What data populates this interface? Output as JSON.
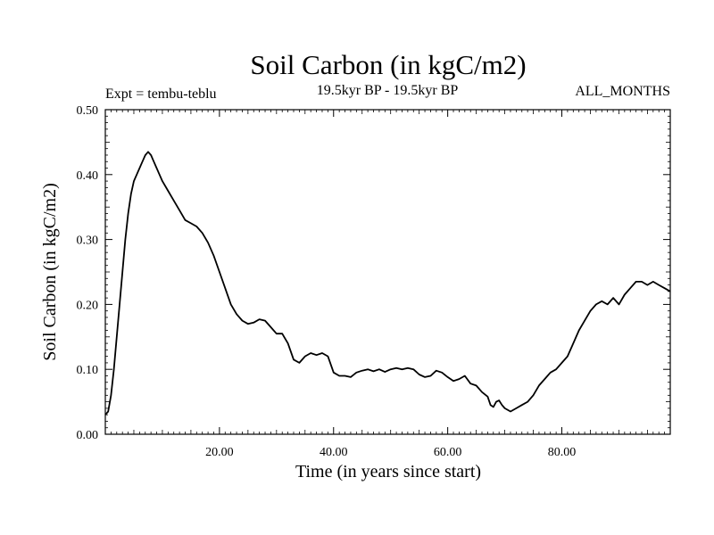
{
  "chart_data": {
    "type": "line",
    "title": "Soil Carbon (in kgC/m2)",
    "subtitle": "19.5kyr BP - 19.5kyr BP",
    "left_note": "Expt = tembu-teblu",
    "right_note": "ALL_MONTHS",
    "xlabel": "Time (in years since start)",
    "ylabel": "Soil Carbon (in kgC/m2)",
    "xlim": [
      0,
      99
    ],
    "ylim": [
      0,
      0.5
    ],
    "xticks": [
      20,
      40,
      60,
      80
    ],
    "xtick_labels": [
      "20.00",
      "40.00",
      "60.00",
      "80.00"
    ],
    "yticks": [
      0,
      0.1,
      0.2,
      0.3,
      0.4,
      0.5
    ],
    "ytick_labels": [
      "0.00",
      "0.10",
      "0.20",
      "0.30",
      "0.40",
      "0.50"
    ],
    "grid": false,
    "series": [
      {
        "line_color": "#000000",
        "x": [
          0,
          0.5,
          1,
          1.5,
          2,
          2.5,
          3,
          3.5,
          4,
          4.5,
          5,
          5.5,
          6,
          6.5,
          7,
          7.5,
          8,
          8.5,
          9,
          9.5,
          10,
          11,
          12,
          13,
          14,
          15,
          16,
          17,
          18,
          19,
          20,
          21,
          22,
          23,
          24,
          25,
          26,
          27,
          28,
          29,
          30,
          31,
          32,
          33,
          34,
          35,
          36,
          37,
          38,
          39,
          40,
          41,
          42,
          43,
          44,
          45,
          46,
          47,
          48,
          49,
          50,
          51,
          52,
          53,
          54,
          55,
          56,
          57,
          58,
          59,
          60,
          61,
          62,
          63,
          64,
          65,
          66,
          67,
          67.5,
          68,
          68.5,
          69,
          69.5,
          70,
          71,
          72,
          73,
          74,
          75,
          76,
          77,
          78,
          79,
          80,
          81,
          82,
          83,
          84,
          85,
          86,
          87,
          88,
          89,
          90,
          91,
          92,
          93,
          94,
          95,
          96,
          97,
          98,
          99
        ],
        "y": [
          0.03,
          0.035,
          0.06,
          0.1,
          0.15,
          0.2,
          0.25,
          0.3,
          0.34,
          0.37,
          0.39,
          0.4,
          0.41,
          0.42,
          0.43,
          0.435,
          0.43,
          0.42,
          0.41,
          0.4,
          0.39,
          0.375,
          0.36,
          0.345,
          0.33,
          0.325,
          0.32,
          0.31,
          0.295,
          0.275,
          0.25,
          0.225,
          0.2,
          0.185,
          0.175,
          0.17,
          0.172,
          0.177,
          0.175,
          0.165,
          0.155,
          0.155,
          0.14,
          0.115,
          0.11,
          0.12,
          0.125,
          0.122,
          0.125,
          0.12,
          0.095,
          0.09,
          0.09,
          0.088,
          0.095,
          0.098,
          0.1,
          0.097,
          0.1,
          0.096,
          0.1,
          0.102,
          0.1,
          0.102,
          0.1,
          0.092,
          0.088,
          0.09,
          0.098,
          0.095,
          0.088,
          0.082,
          0.085,
          0.09,
          0.078,
          0.075,
          0.065,
          0.058,
          0.045,
          0.042,
          0.05,
          0.052,
          0.045,
          0.04,
          0.035,
          0.04,
          0.045,
          0.05,
          0.06,
          0.075,
          0.085,
          0.095,
          0.1,
          0.11,
          0.12,
          0.14,
          0.16,
          0.175,
          0.19,
          0.2,
          0.205,
          0.2,
          0.21,
          0.2,
          0.215,
          0.225,
          0.235,
          0.235,
          0.23,
          0.235,
          0.23,
          0.225,
          0.22
        ]
      }
    ]
  }
}
